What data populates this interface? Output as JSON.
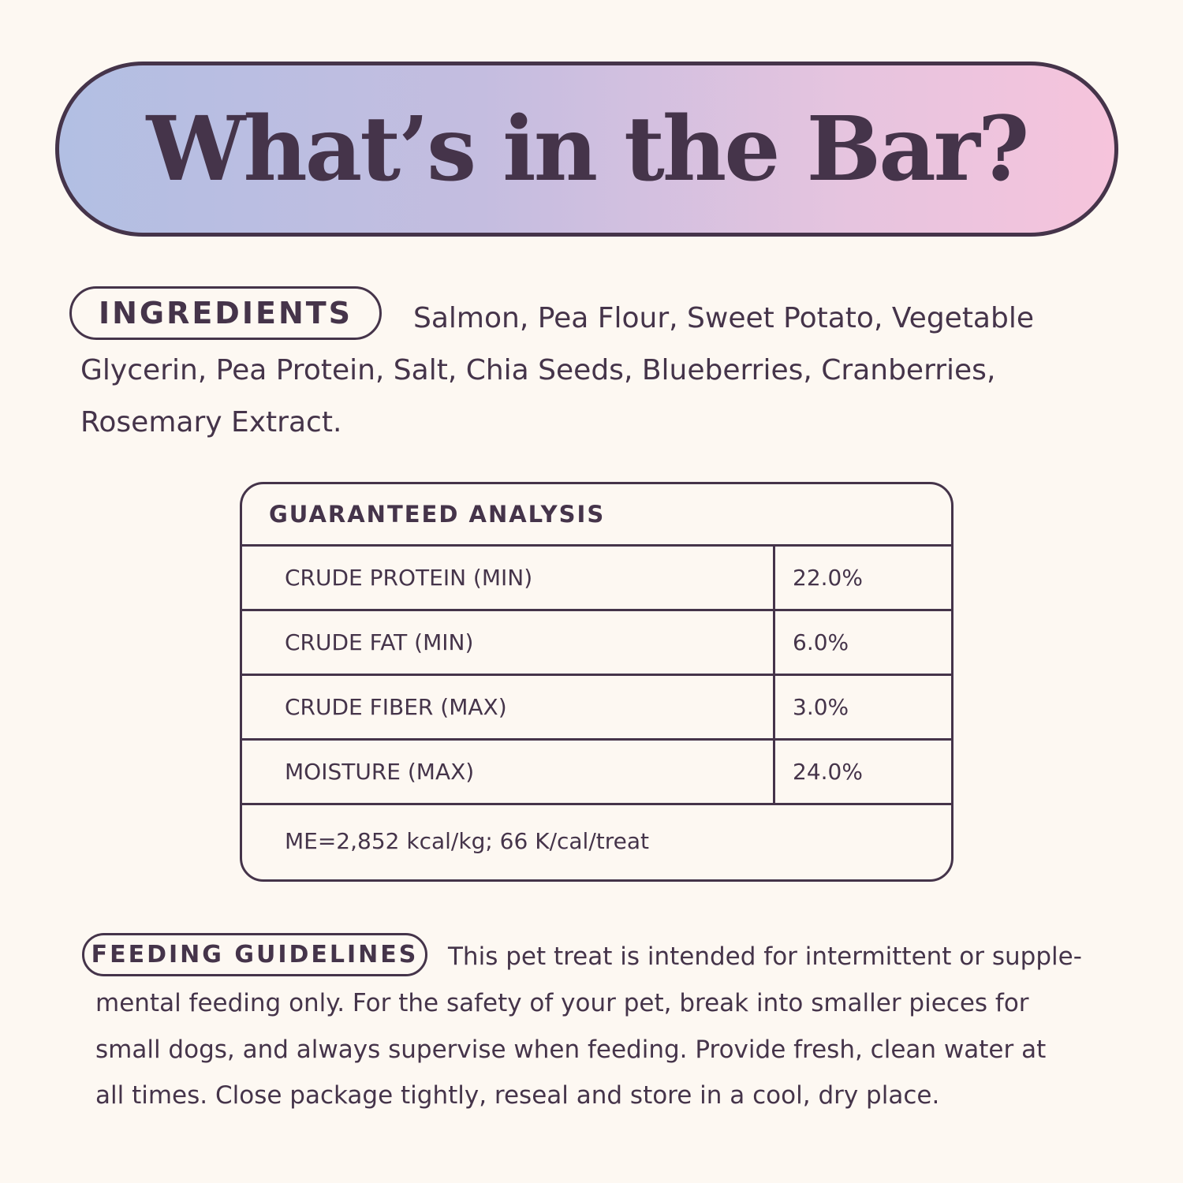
{
  "title": "What’s in the Bar?",
  "colors": {
    "background": "#fdf8f2",
    "text": "#45344a",
    "gradient_start": "#b2bfe3",
    "gradient_end": "#f6c4dc"
  },
  "ingredients": {
    "label": "INGREDIENTS",
    "lines": [
      "Salmon, Pea Flour, Sweet Potato, Vegetable",
      "Glycerin, Pea Protein, Salt, Chia Seeds, Blueberries, Cranberries,",
      "Rosemary Extract."
    ]
  },
  "analysis": {
    "heading": "GUARANTEED ANALYSIS",
    "rows": [
      {
        "label": "CRUDE PROTEIN (MIN)",
        "value": "22.0%"
      },
      {
        "label": "CRUDE FAT (MIN)",
        "value": "6.0%"
      },
      {
        "label": "CRUDE FIBER (MAX)",
        "value": "3.0%"
      },
      {
        "label": "MOISTURE (MAX)",
        "value": "24.0%"
      }
    ],
    "footer": "ME=2,852 kcal/kg; 66 K/cal/treat"
  },
  "feeding": {
    "label": "FEEDING GUIDELINES",
    "lines": [
      "This pet treat is intended for intermittent or supple-",
      "mental feeding only. For the safety of your pet, break into smaller pieces for",
      "small dogs, and always supervise when feeding. Provide fresh, clean water at",
      "all times. Close package tightly, reseal and store in a cool, dry place."
    ]
  }
}
